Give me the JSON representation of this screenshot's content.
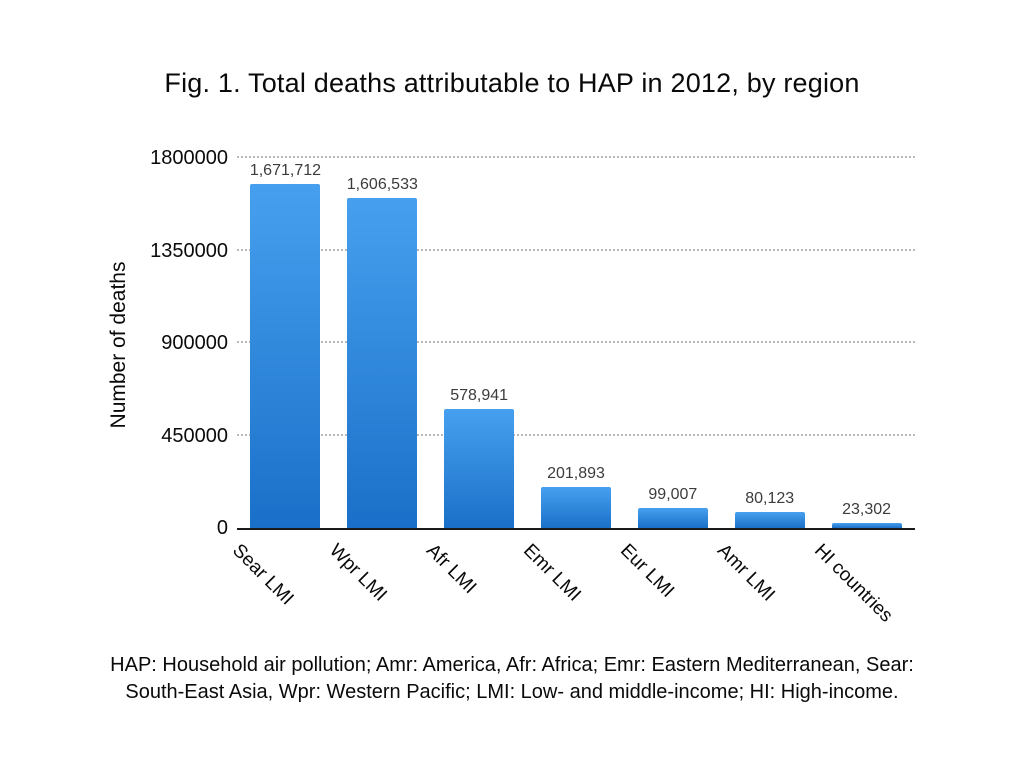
{
  "chart_data": {
    "type": "bar",
    "title": "Fig. 1. Total deaths attributable to HAP in 2012, by region",
    "ylabel": "Number of deaths",
    "xlabel": "",
    "categories": [
      "Sear LMI",
      "Wpr LMI",
      "Afr LMI",
      "Emr LMI",
      "Eur LMI",
      "Amr LMI",
      "HI countries"
    ],
    "values": [
      1671712,
      1606533,
      578941,
      201893,
      99007,
      80123,
      23302
    ],
    "value_labels": [
      "1,671,712",
      "1,606,533",
      "578,941",
      "201,893",
      "99,007",
      "80,123",
      "23,302"
    ],
    "ylim": [
      0,
      1800000
    ],
    "yticks": [
      0,
      450000,
      900000,
      1350000,
      1800000
    ],
    "ytick_labels": [
      "0",
      "450000",
      "900000",
      "1350000",
      "1800000"
    ],
    "grid": "horizontal dotted gridlines at each y tick, solid baseline at 0, no legend",
    "bar_color_top": "#47A0EF",
    "bar_color_bottom": "#1A70C8",
    "gridline_color": "#b8b8b8",
    "axis_color": "#1a1a1a"
  },
  "footnote": "HAP: Household air pollution; Amr: America, Afr: Africa; Emr: Eastern Mediterranean, Sear: South-East Asia, Wpr: Western Pacific; LMI: Low- and middle-income; HI: High-income."
}
